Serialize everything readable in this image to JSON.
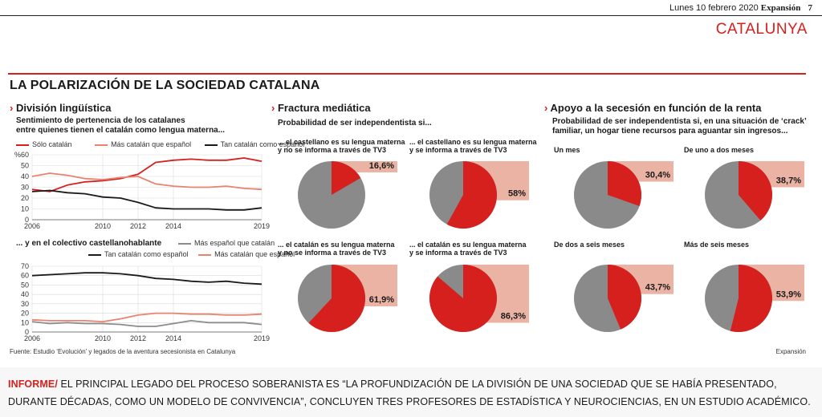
{
  "header": {
    "date": "Lunes 10 febrero 2020",
    "publication": "Expansión",
    "page_number": "7",
    "section": "CATALUNYA"
  },
  "title": "LA POLARIZACIÓN DE LA SOCIEDAD CATALANA",
  "panels": {
    "linguistic": {
      "title": "División lingüística"
    },
    "media": {
      "title": "Fractura mediática",
      "subtitle": "Probabilidad de ser independentista si..."
    },
    "income": {
      "title": "Apoyo a la secesión en función de la renta",
      "subtitle_1": "Probabilidad de ser independentista si, en una situación de ‘crack’",
      "subtitle_2": "familiar, un hogar tiene recursos para aguantar sin ingresos..."
    }
  },
  "colors": {
    "red": "#d6201e",
    "light_red": "#e8836f",
    "black": "#1a1a1a",
    "gray": "#8c8c8c",
    "pie_gray": "#8a8a8a",
    "pie_box": "#ebb3a3"
  },
  "chart_data": [
    {
      "type": "line",
      "subtitle_1": "Sentimiento de pertenencia de los catalanes",
      "subtitle_2": "entre quienes tienen el catalán como lengua materna...",
      "y_unit": "%",
      "ylim": [
        0,
        60
      ],
      "y_ticks": [
        0,
        10,
        20,
        30,
        40,
        50,
        60
      ],
      "xlim": [
        2006,
        2019
      ],
      "x_ticks": [
        2006,
        2010,
        2012,
        2014,
        2019
      ],
      "grid": true,
      "series": [
        {
          "name": "Sólo catalán",
          "color": "#d6201e",
          "x": [
            2006,
            2007,
            2008,
            2009,
            2010,
            2011,
            2012,
            2013,
            2014,
            2015,
            2016,
            2017,
            2018,
            2019
          ],
          "values": [
            28,
            26,
            32,
            35,
            36,
            38,
            42,
            53,
            55,
            56,
            55,
            55,
            57,
            54
          ]
        },
        {
          "name": "Más catalán que español",
          "color": "#e8836f",
          "x": [
            2006,
            2007,
            2008,
            2009,
            2010,
            2011,
            2012,
            2013,
            2014,
            2015,
            2016,
            2017,
            2018,
            2019
          ],
          "values": [
            40,
            43,
            41,
            38,
            37,
            39,
            40,
            33,
            31,
            30,
            30,
            31,
            29,
            28
          ]
        },
        {
          "name": "Tan catalán como español",
          "color": "#1a1a1a",
          "x": [
            2006,
            2007,
            2008,
            2009,
            2010,
            2011,
            2012,
            2013,
            2014,
            2015,
            2016,
            2017,
            2018,
            2019
          ],
          "values": [
            26,
            27,
            25,
            24,
            21,
            20,
            16,
            11,
            10,
            10,
            10,
            9,
            9,
            11
          ]
        }
      ]
    },
    {
      "type": "line",
      "subtitle_1": "... y en el colectivo castellanohablante",
      "ylim": [
        0,
        70
      ],
      "y_ticks": [
        0,
        10,
        20,
        30,
        40,
        50,
        60,
        70
      ],
      "xlim": [
        2006,
        2019
      ],
      "x_ticks": [
        2006,
        2010,
        2012,
        2014,
        2019
      ],
      "grid": true,
      "series": [
        {
          "name": "Más español que catalán",
          "color": "#8c8c8c",
          "x": [
            2006,
            2007,
            2008,
            2009,
            2010,
            2011,
            2012,
            2013,
            2014,
            2015,
            2016,
            2017,
            2018,
            2019
          ],
          "values": [
            11,
            9,
            10,
            9,
            9,
            8,
            6,
            6,
            9,
            12,
            10,
            10,
            10,
            8
          ]
        },
        {
          "name": "Tan catalán como español",
          "color": "#1a1a1a",
          "x": [
            2006,
            2007,
            2008,
            2009,
            2010,
            2011,
            2012,
            2013,
            2014,
            2015,
            2016,
            2017,
            2018,
            2019
          ],
          "values": [
            60,
            61,
            62,
            63,
            63,
            62,
            60,
            57,
            56,
            54,
            53,
            54,
            52,
            51
          ]
        },
        {
          "name": "Más catalán que español",
          "color": "#e8836f",
          "x": [
            2006,
            2007,
            2008,
            2009,
            2010,
            2011,
            2012,
            2013,
            2014,
            2015,
            2016,
            2017,
            2018,
            2019
          ],
          "values": [
            13,
            12,
            12,
            12,
            11,
            14,
            18,
            20,
            20,
            19,
            19,
            18,
            18,
            19
          ]
        }
      ]
    },
    {
      "type": "pie",
      "panel": "media",
      "items": [
        {
          "label_1": "... el castellano es su lengua materna",
          "label_2": "y no se informa a través de TV3",
          "value": 16.6,
          "display": "16,6%"
        },
        {
          "label_1": "... el castellano es su lengua materna",
          "label_2": "y se informa a través de TV3",
          "value": 58,
          "display": "58%"
        },
        {
          "label_1": "... el catalán es su lengua materna",
          "label_2": "y no se informa a través de TV3",
          "value": 61.9,
          "display": "61,9%"
        },
        {
          "label_1": "... el catalán es su lengua materna",
          "label_2": "y se informa a través de TV3",
          "value": 86.3,
          "display": "86,3%"
        }
      ]
    },
    {
      "type": "pie",
      "panel": "income",
      "items": [
        {
          "label_1": "Un mes",
          "value": 30.4,
          "display": "30,4%"
        },
        {
          "label_1": "De uno a dos meses",
          "value": 38.7,
          "display": "38,7%"
        },
        {
          "label_1": "De dos a seis meses",
          "value": 43.7,
          "display": "43,7%"
        },
        {
          "label_1": "Más de seis meses",
          "value": 53.9,
          "display": "53,9%"
        }
      ]
    }
  ],
  "footer": {
    "source": "Fuente: Estudio ‘Evolución’ y legados de la aventura secesionista en Catalunya",
    "credit": "Expansión"
  },
  "info": {
    "tag": "INFORME/",
    "text": "EL PRINCIPAL LEGADO DEL PROCESO SOBERANISTA ES “LA PROFUNDIZACIÓN DE LA DIVISIÓN DE UNA SOCIEDAD QUE SE HABÍA PRESENTADO, DURANTE DÉCADAS, COMO UN MODELO DE CONVIVENCIA”, CONCLUYEN TRES PROFESORES DE ESTADÍSTICA Y NEUROCIENCIAS, EN UN ESTUDIO ACADÉMICO."
  }
}
